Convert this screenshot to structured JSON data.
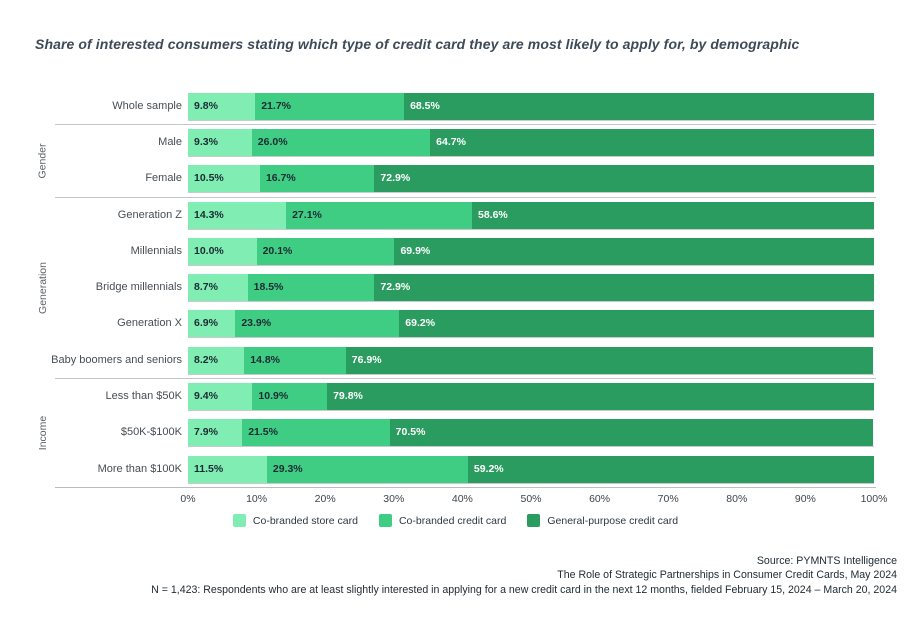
{
  "title": "Share of interested consumers stating which type of credit card they are most likely to apply for, by demographic",
  "chart_data": {
    "type": "bar",
    "orientation": "horizontal",
    "stacked": true,
    "unit": "%",
    "legend_position": "bottom",
    "series": [
      {
        "name": "Co-branded store card",
        "color": "#80EDB3",
        "label_color": "#1a2b33"
      },
      {
        "name": "Co-branded credit card",
        "color": "#3FCC83",
        "label_color": "#1a2b33"
      },
      {
        "name": "General-purpose credit card",
        "color": "#2A9C5F",
        "label_color": "#ffffff"
      }
    ],
    "groups": [
      {
        "label": "",
        "rows": [
          {
            "label": "Whole sample",
            "values": [
              9.8,
              21.7,
              68.5
            ]
          }
        ]
      },
      {
        "label": "Gender",
        "rows": [
          {
            "label": "Male",
            "values": [
              9.3,
              26.0,
              64.7
            ]
          },
          {
            "label": "Female",
            "values": [
              10.5,
              16.7,
              72.9
            ]
          }
        ]
      },
      {
        "label": "Generation",
        "rows": [
          {
            "label": "Generation Z",
            "values": [
              14.3,
              27.1,
              58.6
            ]
          },
          {
            "label": "Millennials",
            "values": [
              10.0,
              20.1,
              69.9
            ]
          },
          {
            "label": "Bridge millennials",
            "values": [
              8.7,
              18.5,
              72.9
            ]
          },
          {
            "label": "Generation X",
            "values": [
              6.9,
              23.9,
              69.2
            ]
          },
          {
            "label": "Baby boomers and seniors",
            "values": [
              8.2,
              14.8,
              76.9
            ]
          }
        ]
      },
      {
        "label": "Income",
        "rows": [
          {
            "label": "Less than $50K",
            "values": [
              9.4,
              10.9,
              79.8
            ]
          },
          {
            "label": "$50K-$100K",
            "values": [
              7.9,
              21.5,
              70.5
            ]
          },
          {
            "label": "More than $100K",
            "values": [
              11.5,
              29.3,
              59.2
            ]
          }
        ]
      }
    ],
    "x_axis": {
      "min": 0,
      "max": 100,
      "tick_labels": [
        "0%",
        "10%",
        "20%",
        "30%",
        "40%",
        "50%",
        "60%",
        "70%",
        "80%",
        "90%",
        "100%"
      ]
    }
  },
  "footer": {
    "source_line": "Source: PYMNTS Intelligence",
    "report_line": "The Role of Strategic Partnerships in Consumer Credit Cards, May 2024",
    "note_line": "N = 1,423: Respondents who are at least slightly interested in applying for a new credit card in the next 12 months, fielded February 15, 2024 – March 20, 2024"
  }
}
